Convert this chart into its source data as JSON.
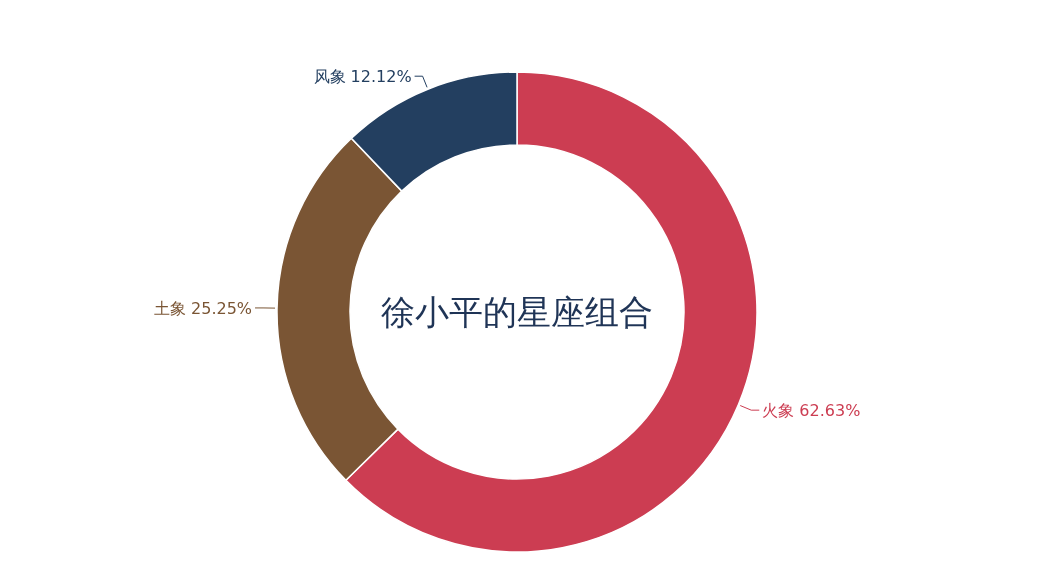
{
  "chart_data": {
    "type": "donut",
    "title": "徐小平的星座组合",
    "categories": [
      "火象",
      "土象",
      "风象"
    ],
    "values": [
      62.63,
      25.25,
      12.12
    ],
    "value_labels": [
      "62.63%",
      "25.25%",
      "12.12%"
    ],
    "colors": [
      "#cc3d52",
      "#7a5534",
      "#233f60"
    ]
  }
}
